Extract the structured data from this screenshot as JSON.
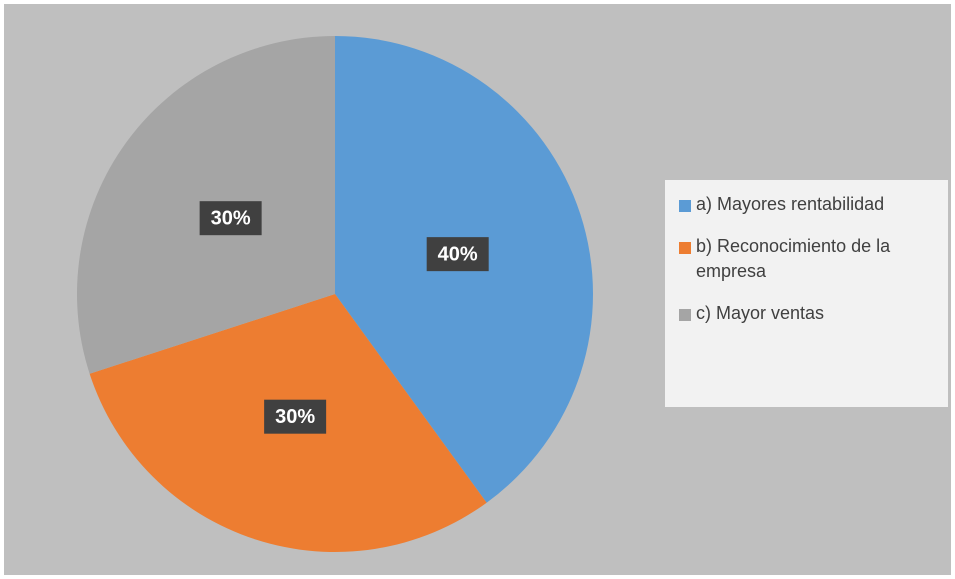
{
  "chart_data": {
    "type": "pie",
    "categories": [
      "a) Mayores rentabilidad",
      "b) Reconocimiento de la empresa",
      "c) Mayor ventas"
    ],
    "values": [
      40,
      30,
      30
    ],
    "value_labels": [
      "40%",
      "30%",
      "30%"
    ],
    "colors": [
      "#5b9bd5",
      "#ed7d31",
      "#a5a5a5"
    ],
    "legend": "right"
  }
}
